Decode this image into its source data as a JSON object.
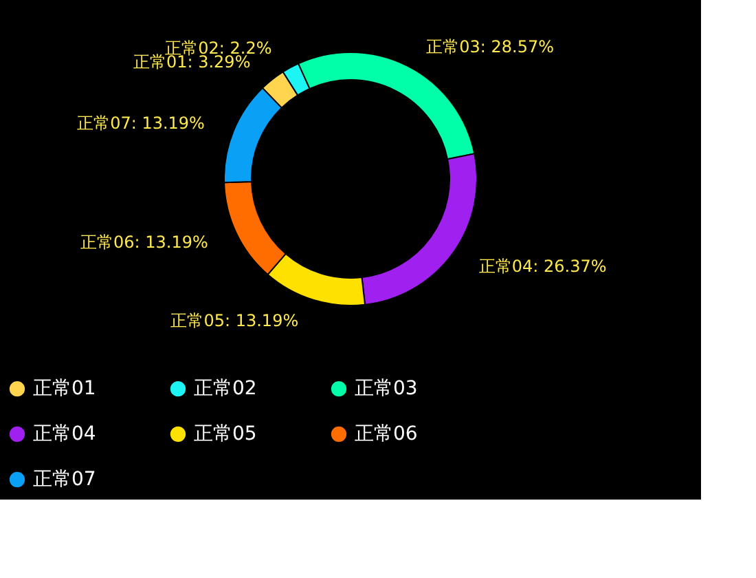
{
  "chart_data": {
    "type": "donut",
    "categories": [
      "正常01",
      "正常02",
      "正常03",
      "正常04",
      "正常05",
      "正常06",
      "正常07"
    ],
    "values": [
      3.29,
      2.2,
      28.57,
      26.37,
      13.19,
      13.19,
      13.19
    ],
    "colors": [
      "#ffd54f",
      "#1df5f5",
      "#00ffa8",
      "#a020f0",
      "#ffe100",
      "#ff6d00",
      "#0aa0f5"
    ],
    "value_labels": [
      "正常01:  3.29%",
      "正常02:  2.2%",
      "正常03:  28.57%",
      "正常04:  26.37%",
      "正常05:  13.19%",
      "正常06:  13.19%",
      "正常07:  13.19%"
    ],
    "legend": "bottom"
  }
}
